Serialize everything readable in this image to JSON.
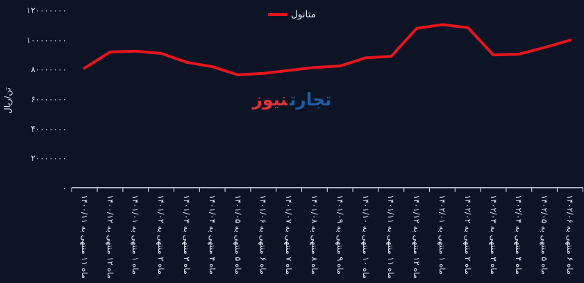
{
  "page": {
    "background": "#0d1426",
    "text_color": "#e3e7f0",
    "axis_color": "#ccd4e2"
  },
  "legend": {
    "label": "متانول",
    "marker_color": "#e8141c"
  },
  "watermark": {
    "word_right": "تجارت",
    "word_left": "نیوز",
    "color_right": "#1f5da6",
    "color_left": "#dd3438"
  },
  "chart_data": {
    "type": "line",
    "title": "",
    "ylabel": "تن/ریال",
    "xlabel": "",
    "grid": false,
    "legend_position": "top-center",
    "ylim": [
      0,
      120000000
    ],
    "y_ticks": [
      {
        "value": 0,
        "label": "۰"
      },
      {
        "value": 20000000,
        "label": "۲۰۰۰۰۰۰۰"
      },
      {
        "value": 40000000,
        "label": "۴۰۰۰۰۰۰۰"
      },
      {
        "value": 60000000,
        "label": "۶۰۰۰۰۰۰۰"
      },
      {
        "value": 80000000,
        "label": "۸۰۰۰۰۰۰۰"
      },
      {
        "value": 100000000,
        "label": "۱۰۰۰۰۰۰۰۰"
      },
      {
        "value": 120000000,
        "label": "۱۲۰۰۰۰۰۰۰"
      }
    ],
    "categories": [
      "ماه ۱۱ منتهی به ۱۴۰۰/۱۱",
      "ماه ۱۲ منتهی به ۱۴۰۰/۱۲",
      "ماه ۱ منتهی به ۱۴۰۱/۰۱",
      "ماه ۲ منتهی به ۱۴۰۱/۰۲",
      "ماه ۳ منتهی به ۱۴۰۱/۰۳",
      "ماه ۴ منتهی به ۱۴۰۱/۰۴",
      "ماه ۵ منتهی به ۱۴۰۱/۰۵",
      "ماه ۶ منتهی به ۱۴۰۱/۰۶",
      "ماه ۷ منتهی به ۱۴۰۱/۰۷",
      "ماه ۸ منتهی به ۱۴۰۱/۰۸",
      "ماه ۹ منتهی به ۱۴۰۱/۰۹",
      "ماه ۱۰ منتهی به ۱۴۰۱/۱۰",
      "ماه ۱۱ منتهی به ۱۴۰۱/۱۱",
      "ماه ۱۲ منتهی به ۱۴۰۱/۱۲",
      "ماه ۱ منتهی به ۱۴۰۲/۰۱",
      "ماه ۲ منتهی به ۱۴۰۲/۰۲",
      "ماه ۳ منتهی به ۱۴۰۲/۰۳",
      "ماه ۴ منتهی به ۱۴۰۲/۰۴",
      "ماه ۵ منتهی به ۱۴۰۲/۰۵",
      "ماه ۶ منتهی به ۱۴۰۲/۰۶"
    ],
    "series": [
      {
        "name": "متانول",
        "color": "#e8141c",
        "values": [
          81000000,
          92000000,
          92500000,
          91000000,
          85000000,
          82000000,
          76500000,
          77500000,
          79500000,
          81500000,
          82500000,
          88000000,
          89000000,
          108000000,
          110500000,
          108500000,
          90000000,
          90500000,
          95000000,
          100000000
        ]
      }
    ]
  }
}
